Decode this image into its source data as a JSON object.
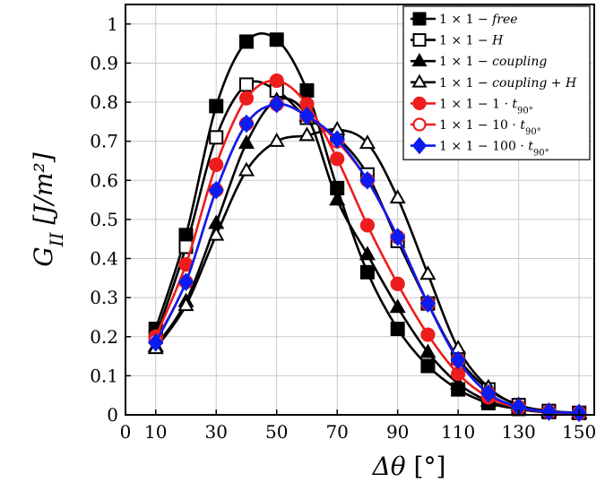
{
  "chart_data": {
    "type": "line",
    "xlabel": "Δθ [°]",
    "ylabel": "G_II [J/m²]",
    "xlim": [
      0,
      155
    ],
    "ylim": [
      0,
      1.05
    ],
    "xticks": [
      0,
      10,
      30,
      50,
      70,
      90,
      110,
      130,
      150
    ],
    "yticks": [
      0,
      0.1,
      0.2,
      0.3,
      0.4,
      0.5,
      0.6,
      0.7,
      0.8,
      0.9,
      1
    ],
    "grid": true,
    "legend_position": "top-right",
    "x": [
      10,
      20,
      30,
      40,
      50,
      60,
      70,
      80,
      90,
      100,
      110,
      120,
      130,
      140,
      150
    ],
    "series": [
      {
        "name": "1 × 1 − free",
        "color": "#000000",
        "marker": "square",
        "filled": true,
        "values": [
          0.22,
          0.46,
          0.79,
          0.955,
          0.96,
          0.83,
          0.58,
          0.365,
          0.22,
          0.125,
          0.065,
          0.03,
          0.015,
          0.007,
          0.005
        ]
      },
      {
        "name": "1 × 1 − H",
        "color": "#000000",
        "marker": "square",
        "filled": false,
        "values": [
          0.2,
          0.43,
          0.71,
          0.845,
          0.83,
          0.76,
          0.71,
          0.615,
          0.445,
          0.285,
          0.145,
          0.065,
          0.025,
          0.01,
          0.005
        ]
      },
      {
        "name": "1 × 1 − coupling",
        "color": "#000000",
        "marker": "triangle",
        "filled": true,
        "values": [
          0.175,
          0.29,
          0.49,
          0.695,
          0.805,
          0.765,
          0.55,
          0.41,
          0.275,
          0.16,
          0.08,
          0.035,
          0.015,
          0.006,
          0.004
        ]
      },
      {
        "name": "1 × 1 − coupling + H",
        "color": "#000000",
        "marker": "triangle",
        "filled": false,
        "values": [
          0.17,
          0.28,
          0.46,
          0.625,
          0.7,
          0.715,
          0.73,
          0.695,
          0.555,
          0.36,
          0.17,
          0.07,
          0.025,
          0.01,
          0.005
        ]
      },
      {
        "name": "1 × 1 − 1 · t_90°",
        "color": "#ee1c1c",
        "marker": "circle",
        "filled": true,
        "values": [
          0.2,
          0.385,
          0.64,
          0.81,
          0.855,
          0.795,
          0.655,
          0.485,
          0.335,
          0.205,
          0.105,
          0.045,
          0.018,
          0.007,
          0.004
        ]
      },
      {
        "name": "1 × 1 − 10 · t_90°",
        "color": "#ee1c1c",
        "marker": "circle",
        "filled": false,
        "values": [
          0.19,
          0.34,
          0.575,
          0.745,
          0.795,
          0.765,
          0.7,
          0.6,
          0.455,
          0.285,
          0.14,
          0.055,
          0.02,
          0.008,
          0.005
        ]
      },
      {
        "name": "1 × 1 − 100 · t_90°",
        "color": "#0a1cf0",
        "marker": "diamond",
        "filled": true,
        "values": [
          0.185,
          0.34,
          0.575,
          0.745,
          0.795,
          0.765,
          0.705,
          0.6,
          0.455,
          0.285,
          0.14,
          0.055,
          0.02,
          0.008,
          0.005
        ]
      }
    ]
  }
}
